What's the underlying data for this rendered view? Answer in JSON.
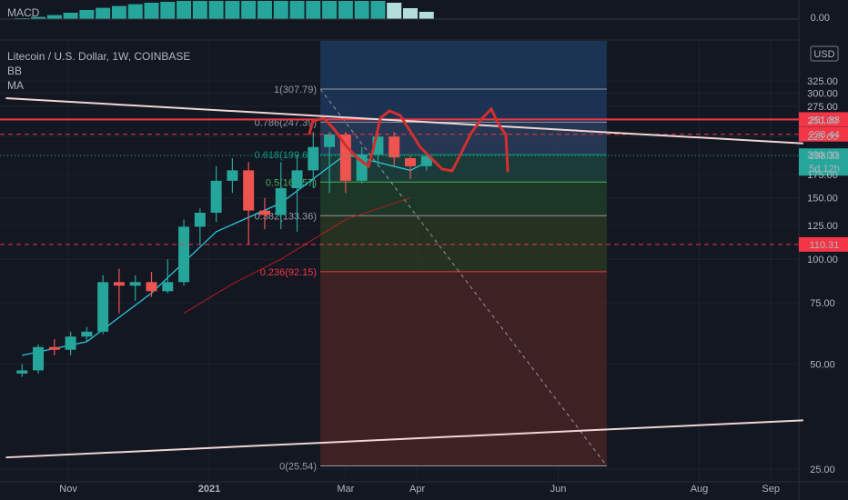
{
  "legend": {
    "macd": "MACD",
    "symbol": "Litecoin / U.S. Dollar, 1W, COINBASE",
    "bb": "BB",
    "ma": "MA"
  },
  "currency_badge": "USD",
  "colors": {
    "background": "#131722",
    "up": "#26a69a",
    "down": "#ef5350",
    "resistance": "#f23645",
    "trend_line": "#f0d6d6",
    "axis_text": "#b2b5be"
  },
  "macd": {
    "zero_label": "0.00",
    "histogram": [
      0.05,
      0.12,
      0.22,
      0.35,
      0.5,
      0.62,
      0.72,
      0.82,
      0.9,
      0.95,
      1.0,
      1.0,
      1.0,
      1.0,
      1.0,
      1.0,
      1.0,
      1.0,
      1.0,
      1.0,
      1.0,
      1.0,
      1.0,
      0.9,
      0.6,
      0.4
    ]
  },
  "chart_data": {
    "type": "candlestick",
    "symbol": "Litecoin / U.S. Dollar",
    "interval": "1W",
    "exchange": "COINBASE",
    "y_axis": {
      "scale": "log",
      "range": [
        24,
        340
      ],
      "tick_labels": [
        "325.00",
        "300.00",
        "275.00",
        "250.00",
        "225.00",
        "200.00",
        "175.00",
        "150.00",
        "125.00",
        "100.00",
        "75.00",
        "50.00",
        "25.00"
      ],
      "tick_values": [
        325,
        300,
        275,
        250,
        225,
        200,
        175,
        150,
        125,
        100,
        75,
        50,
        25
      ]
    },
    "x_axis": {
      "labels": [
        {
          "text": "Nov",
          "date": "2020-11-01"
        },
        {
          "text": "2021",
          "date": "2021-01-01"
        },
        {
          "text": "Mar",
          "date": "2021-03-01"
        },
        {
          "text": "Apr",
          "date": "2021-04-01"
        },
        {
          "text": "Jun",
          "date": "2021-06-01"
        },
        {
          "text": "Aug",
          "date": "2021-08-01"
        },
        {
          "text": "Sep",
          "date": "2021-09-01"
        }
      ]
    },
    "candles": [
      {
        "date": "2020-10-12",
        "o": 47,
        "h": 50,
        "l": 46,
        "c": 48
      },
      {
        "date": "2020-10-19",
        "o": 48,
        "h": 57,
        "l": 47,
        "c": 56
      },
      {
        "date": "2020-10-26",
        "o": 56,
        "h": 59,
        "l": 53,
        "c": 55
      },
      {
        "date": "2020-11-02",
        "o": 55,
        "h": 62,
        "l": 53,
        "c": 60
      },
      {
        "date": "2020-11-09",
        "o": 60,
        "h": 64,
        "l": 58,
        "c": 62
      },
      {
        "date": "2020-11-16",
        "o": 62,
        "h": 90,
        "l": 61,
        "c": 86
      },
      {
        "date": "2020-11-23",
        "o": 86,
        "h": 94,
        "l": 70,
        "c": 84
      },
      {
        "date": "2020-11-30",
        "o": 84,
        "h": 90,
        "l": 76,
        "c": 86
      },
      {
        "date": "2020-12-07",
        "o": 86,
        "h": 92,
        "l": 78,
        "c": 81
      },
      {
        "date": "2020-12-14",
        "o": 81,
        "h": 100,
        "l": 80,
        "c": 86
      },
      {
        "date": "2020-12-21",
        "o": 86,
        "h": 130,
        "l": 84,
        "c": 124
      },
      {
        "date": "2020-12-28",
        "o": 124,
        "h": 140,
        "l": 110,
        "c": 136
      },
      {
        "date": "2021-01-04",
        "o": 136,
        "h": 185,
        "l": 128,
        "c": 168
      },
      {
        "date": "2021-01-11",
        "o": 168,
        "h": 195,
        "l": 155,
        "c": 180
      },
      {
        "date": "2021-01-18",
        "o": 180,
        "h": 190,
        "l": 110,
        "c": 138
      },
      {
        "date": "2021-01-25",
        "o": 138,
        "h": 150,
        "l": 122,
        "c": 134
      },
      {
        "date": "2021-02-01",
        "o": 134,
        "h": 190,
        "l": 122,
        "c": 160
      },
      {
        "date": "2021-02-08",
        "o": 160,
        "h": 200,
        "l": 120,
        "c": 180
      },
      {
        "date": "2021-02-15",
        "o": 180,
        "h": 232,
        "l": 160,
        "c": 210
      },
      {
        "date": "2021-02-22",
        "o": 210,
        "h": 232,
        "l": 155,
        "c": 228
      },
      {
        "date": "2021-03-01",
        "o": 228,
        "h": 232,
        "l": 155,
        "c": 168
      },
      {
        "date": "2021-03-08",
        "o": 168,
        "h": 210,
        "l": 165,
        "c": 200
      },
      {
        "date": "2021-03-15",
        "o": 200,
        "h": 232,
        "l": 185,
        "c": 225
      },
      {
        "date": "2021-03-22",
        "o": 225,
        "h": 232,
        "l": 185,
        "c": 196
      },
      {
        "date": "2021-03-29",
        "o": 195,
        "h": 198,
        "l": 170,
        "c": 185
      },
      {
        "date": "2021-04-05",
        "o": 185,
        "h": 200,
        "l": 180,
        "c": 198
      }
    ],
    "horizontal_levels": [
      {
        "value": 251.88,
        "label": "251.88",
        "style": "solid"
      },
      {
        "value": 228.44,
        "label": "228.44",
        "style": "dashed"
      },
      {
        "value": 110.31,
        "label": "110.31",
        "style": "dashed"
      }
    ],
    "last_price": {
      "value": 198.33,
      "label": "198.33",
      "countdown": "5d 12h"
    },
    "fibonacci": {
      "levels": [
        {
          "ratio": "1",
          "value": 307.79,
          "label": "1(307.79)",
          "color": "#9598a1"
        },
        {
          "ratio": "0.786",
          "value": 247.39,
          "label": "0.786(247.39)",
          "color": "#9598a1"
        },
        {
          "ratio": "0.618",
          "value": 199.67,
          "label": "0.618(199.67)",
          "color": "#089981"
        },
        {
          "ratio": "0.5",
          "value": 166.57,
          "label": "0.5(166.57)",
          "color": "#4caf50"
        },
        {
          "ratio": "0.382",
          "value": 133.36,
          "label": "0.382(133.36)",
          "color": "#9598a1"
        },
        {
          "ratio": "0.236",
          "value": 92.15,
          "label": "0.236(92.15)",
          "color": "#f23645"
        },
        {
          "ratio": "0",
          "value": 25.54,
          "label": "0(25.54)",
          "color": "#9598a1"
        }
      ]
    },
    "trend_lines": [
      {
        "from": {
          "date": "2020-10-05",
          "value": 290
        },
        "to": {
          "date": "2021-09-15",
          "value": 215
        }
      },
      {
        "from": {
          "date": "2020-10-05",
          "value": 27
        },
        "to": {
          "date": "2021-09-15",
          "value": 34.5
        }
      }
    ],
    "moving_average": [
      {
        "date": "2020-12-21",
        "value": 70
      },
      {
        "date": "2021-01-11",
        "value": 85
      },
      {
        "date": "2021-02-01",
        "value": 100
      },
      {
        "date": "2021-03-01",
        "value": 130
      },
      {
        "date": "2021-03-29",
        "value": 150
      }
    ],
    "bollinger_mid": [
      {
        "date": "2020-10-12",
        "value": 53
      },
      {
        "date": "2020-11-09",
        "value": 58
      },
      {
        "date": "2020-12-07",
        "value": 80
      },
      {
        "date": "2021-01-04",
        "value": 120
      },
      {
        "date": "2021-02-01",
        "value": 145
      },
      {
        "date": "2021-03-01",
        "value": 200
      },
      {
        "date": "2021-03-29",
        "value": 180
      },
      {
        "date": "2021-04-05",
        "value": 190
      }
    ]
  }
}
